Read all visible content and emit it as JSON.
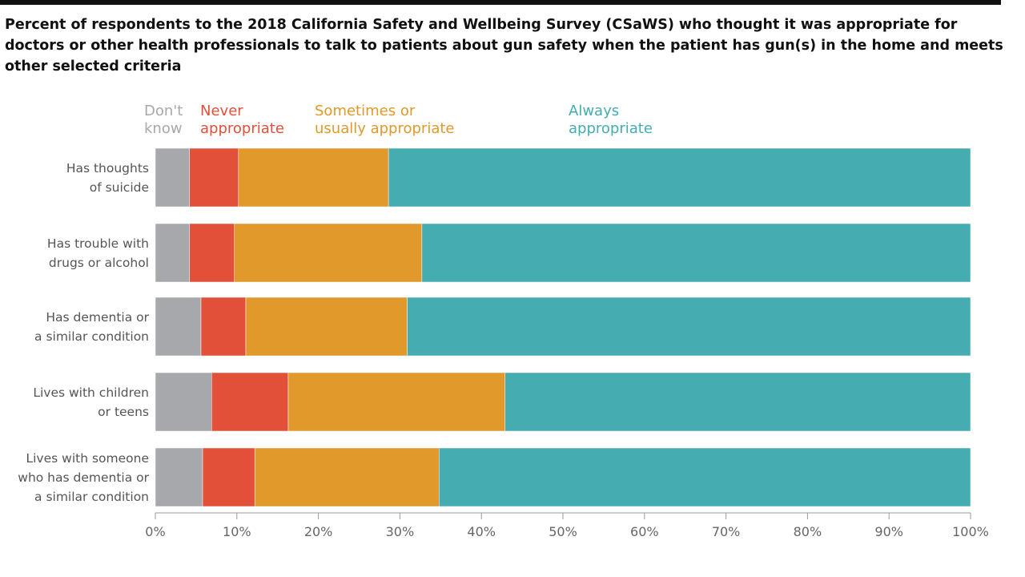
{
  "chart_data": {
    "type": "stacked-bar",
    "orientation": "horizontal",
    "title": "Percent of respondents to the 2018 California Safety and Wellbeing Survey (CSaWS) who thought it was appropriate for doctors or other health professionals to talk to patients about gun safety when the patient has gun(s) in the home and meets other selected criteria",
    "categories": [
      "Has thoughts\nof suicide",
      "Has trouble with\ndrugs or alcohol",
      "Has dementia or\na similar condition",
      "Lives with children\nor teens",
      "Lives with someone\nwho has dementia or\na similar condition"
    ],
    "series": [
      {
        "name": "Don't\nknow",
        "color": "#a7a8ab",
        "values": [
          4.2,
          4.2,
          5.6,
          6.9,
          5.8
        ]
      },
      {
        "name": "Never\nappropriate",
        "color": "#e2503a",
        "values": [
          6.0,
          5.5,
          5.5,
          9.4,
          6.4
        ]
      },
      {
        "name": "Sometimes or\nusually appropriate",
        "color": "#e0992a",
        "values": [
          18.4,
          23.0,
          19.8,
          26.6,
          22.6
        ]
      },
      {
        "name": "Always\nappropriate",
        "color": "#45adb1",
        "values": [
          71.4,
          67.3,
          69.1,
          57.1,
          65.2
        ]
      }
    ],
    "xlim": [
      0,
      100
    ],
    "xticks": [
      {
        "value": 0,
        "label": "0%"
      },
      {
        "value": 10,
        "label": "10%"
      },
      {
        "value": 20,
        "label": "20%"
      },
      {
        "value": 30,
        "label": "30%"
      },
      {
        "value": 40,
        "label": "40%"
      },
      {
        "value": 50,
        "label": "50%"
      },
      {
        "value": 60,
        "label": "60%"
      },
      {
        "value": 70,
        "label": "70%"
      },
      {
        "value": 80,
        "label": "80%"
      },
      {
        "value": 90,
        "label": "90%"
      },
      {
        "value": 100,
        "label": "100%"
      }
    ],
    "grid": false
  }
}
